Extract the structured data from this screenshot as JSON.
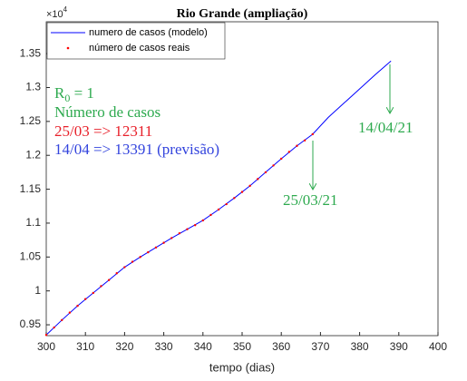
{
  "chart_data": {
    "type": "line",
    "title": "Rio Grande (ampliação)",
    "x_label": "tempo (dias)",
    "y_multiplier": {
      "base": "×10",
      "exponent": "4"
    },
    "xlim": [
      300,
      400
    ],
    "xticks": [
      300,
      310,
      320,
      330,
      340,
      350,
      360,
      370,
      380,
      390,
      400
    ],
    "ylim": [
      0.934,
      1.397
    ],
    "yticks": [
      0.95,
      1,
      1.05,
      1.1,
      1.15,
      1.2,
      1.25,
      1.3,
      1.35
    ],
    "legend": "upper left",
    "series": [
      {
        "name": "numero de casos (modelo)",
        "color": "#0000ff",
        "style": "line",
        "x": [
          300,
          304,
          308,
          312,
          316,
          320,
          324,
          328,
          332,
          336,
          340,
          344,
          348,
          352,
          356,
          360,
          364,
          368,
          372,
          376,
          380,
          384,
          388
        ],
        "values": [
          0.935,
          0.957,
          0.978,
          0.997,
          1.016,
          1.035,
          1.05,
          1.064,
          1.078,
          1.091,
          1.104,
          1.12,
          1.137,
          1.155,
          1.175,
          1.195,
          1.214,
          1.2311,
          1.256,
          1.277,
          1.298,
          1.319,
          1.3391
        ]
      },
      {
        "name": "número de casos reais",
        "color": "#ff0000",
        "style": "dots",
        "x": [
          300,
          302,
          304,
          306,
          308,
          310,
          312,
          314,
          316,
          318,
          320,
          322,
          324,
          326,
          328,
          330,
          332,
          334,
          336,
          338,
          340,
          342,
          344,
          346,
          348,
          350,
          352,
          354,
          356,
          358,
          360,
          362,
          364,
          366,
          368
        ],
        "values": [
          0.935,
          0.946,
          0.957,
          0.968,
          0.978,
          0.988,
          0.997,
          1.007,
          1.016,
          1.026,
          1.035,
          1.043,
          1.05,
          1.057,
          1.064,
          1.071,
          1.078,
          1.085,
          1.091,
          1.097,
          1.104,
          1.112,
          1.12,
          1.128,
          1.137,
          1.146,
          1.155,
          1.165,
          1.175,
          1.185,
          1.195,
          1.205,
          1.214,
          1.222,
          1.2311
        ]
      }
    ],
    "annotations": {
      "r0": {
        "base": "R",
        "sub": "0",
        "rest": " = 1"
      },
      "heading": "Número de casos",
      "line_real": "25/03 => 12311",
      "line_forecast": "14/04 => 13391 (previsão)",
      "date_real": "25/03/21",
      "date_forecast": "14/04/21"
    }
  }
}
